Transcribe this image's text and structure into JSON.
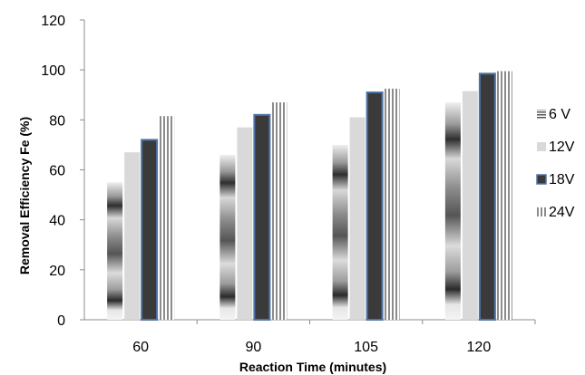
{
  "chart_data": {
    "type": "bar",
    "categories": [
      "60",
      "90",
      "105",
      "120"
    ],
    "series": [
      {
        "name": "6 V",
        "values": [
          55,
          66,
          70,
          87
        ]
      },
      {
        "name": "12V",
        "values": [
          67,
          77,
          81,
          91.5
        ]
      },
      {
        "name": "18V",
        "values": [
          72,
          82,
          91,
          98.5
        ]
      },
      {
        "name": "24V",
        "values": [
          81.5,
          87,
          92.5,
          99.5
        ]
      }
    ],
    "title": "",
    "xlabel": "Reaction Time (minutes)",
    "ylabel": "Removal Efficiency Fe (%)",
    "ylim": [
      0,
      120
    ],
    "yticks": [
      "0",
      "20",
      "40",
      "60",
      "80",
      "100",
      "120"
    ],
    "grid": false,
    "legend_position": "right",
    "colors": {
      "s6": "#8a8a8a",
      "s12": "#d9d9d9",
      "s18_fill": "#3a3a3a",
      "s18_border": "#4f74a8",
      "s24": "#9c9c9c",
      "axis": "#8c8c8c"
    }
  }
}
